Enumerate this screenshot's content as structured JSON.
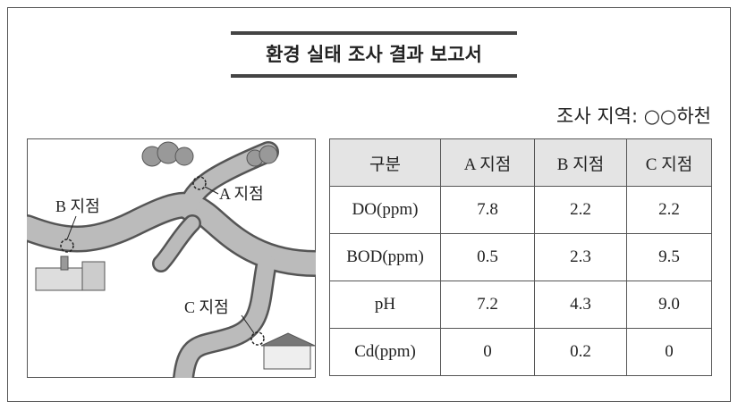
{
  "header": {
    "title": "환경 실태 조사 결과 보고서",
    "location": "조사 지역: ○○하천"
  },
  "map": {
    "labels": [
      "A 지점",
      "B 지점",
      "C 지점"
    ]
  },
  "table": {
    "columns": [
      "구분",
      "A 지점",
      "B 지점",
      "C 지점"
    ],
    "rows": [
      [
        "DO(ppm)",
        "7.8",
        "2.2",
        "2.2"
      ],
      [
        "BOD(ppm)",
        "0.5",
        "2.3",
        "9.5"
      ],
      [
        "pH",
        "7.2",
        "4.3",
        "9.0"
      ],
      [
        "Cd(ppm)",
        "0",
        "0.2",
        "0"
      ]
    ]
  }
}
